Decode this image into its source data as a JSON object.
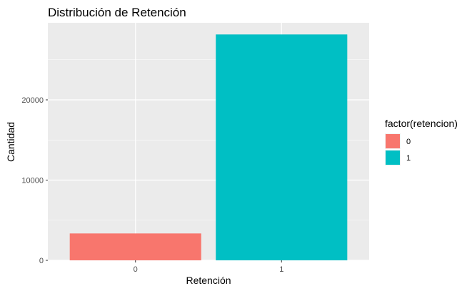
{
  "chart_data": {
    "type": "bar",
    "title": "Distribución de Retención",
    "xlabel": "Retención",
    "ylabel": "Cantidad",
    "categories": [
      "0",
      "1"
    ],
    "values": [
      3350,
      28150
    ],
    "colors": [
      "#F8766D",
      "#00BFC4"
    ],
    "ylim": [
      0,
      29600
    ],
    "y_ticks": [
      0,
      10000,
      20000
    ],
    "y_tick_labels": [
      "0",
      "10000",
      "20000"
    ],
    "grid": true,
    "panel_background": "#EBEBEB",
    "legend": {
      "title": "factor(retencion)",
      "position": "right",
      "entries": [
        {
          "label": "0",
          "color": "#F8766D"
        },
        {
          "label": "1",
          "color": "#00BFC4"
        }
      ]
    }
  }
}
